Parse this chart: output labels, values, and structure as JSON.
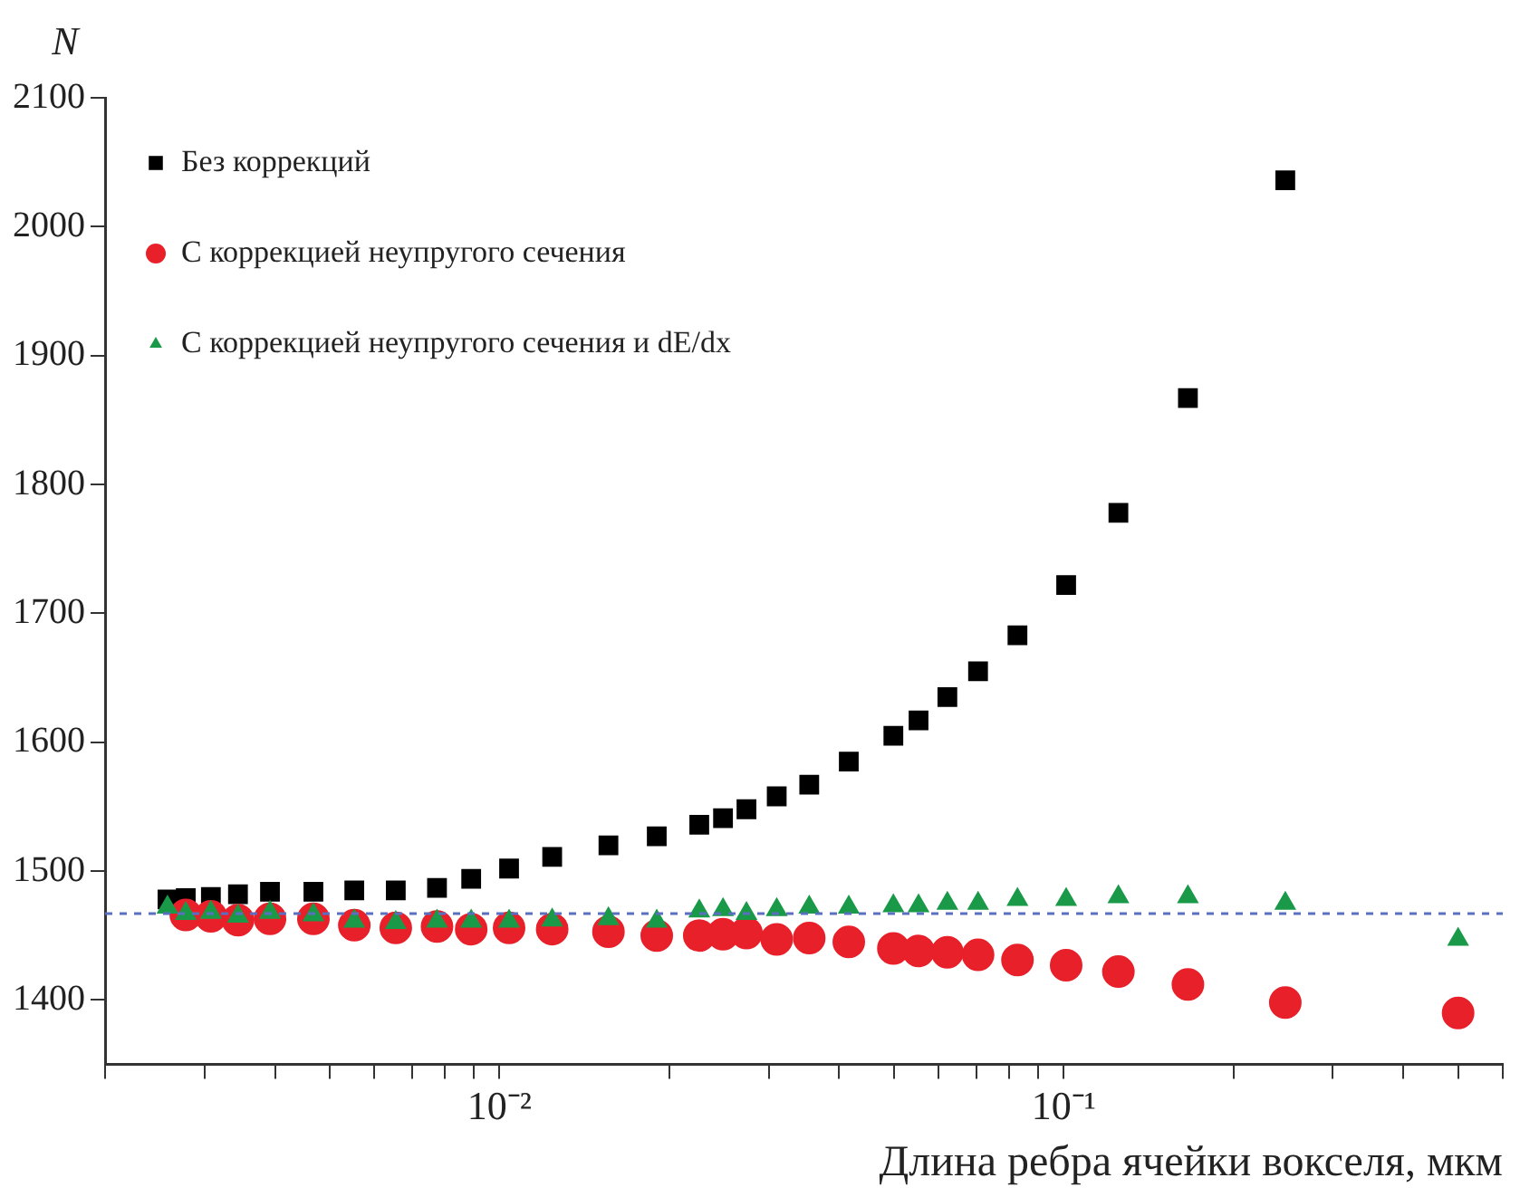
{
  "chart_data": {
    "type": "scatter",
    "xlabel": "Длина ребра ячейки вокселя, мкм",
    "ylabel": "N",
    "log": "x",
    "legend": "top left",
    "grid": false,
    "xlim": [
      0.002,
      0.6
    ],
    "ylim": [
      1350,
      2100
    ],
    "yticks": [
      1400,
      1500,
      1600,
      1700,
      1800,
      1900,
      2000,
      2100
    ],
    "xticks": [
      {
        "value": 0.002,
        "label": null
      },
      {
        "value": 0.003,
        "label": null
      },
      {
        "value": 0.004,
        "label": null
      },
      {
        "value": 0.005,
        "label": null
      },
      {
        "value": 0.006,
        "label": null
      },
      {
        "value": 0.007,
        "label": null
      },
      {
        "value": 0.008,
        "label": null
      },
      {
        "value": 0.009,
        "label": null
      },
      {
        "value": 0.01,
        "label": "10⁻²"
      },
      {
        "value": 0.02,
        "label": null
      },
      {
        "value": 0.03,
        "label": null
      },
      {
        "value": 0.04,
        "label": null
      },
      {
        "value": 0.05,
        "label": null
      },
      {
        "value": 0.06,
        "label": null
      },
      {
        "value": 0.07,
        "label": null
      },
      {
        "value": 0.08,
        "label": null
      },
      {
        "value": 0.09,
        "label": null
      },
      {
        "value": 0.1,
        "label": "10⁻¹"
      },
      {
        "value": 0.2,
        "label": null
      },
      {
        "value": 0.3,
        "label": null
      },
      {
        "value": 0.4,
        "label": null
      },
      {
        "value": 0.5,
        "label": null
      },
      {
        "value": 0.6,
        "label": null
      }
    ],
    "ref_lines": [
      {
        "axis": "y",
        "value": 1467,
        "label": null,
        "color": "#5b6fc0",
        "line_style": "dashed"
      }
    ],
    "series": [
      {
        "name": "Без коррекций",
        "color": "#000000",
        "marker": "square",
        "x": [
          0.00258,
          0.00278,
          0.00308,
          0.00344,
          0.00392,
          0.00468,
          0.00553,
          0.00655,
          0.00775,
          0.00891,
          0.0104,
          0.0124,
          0.0156,
          0.019,
          0.0226,
          0.0249,
          0.0274,
          0.031,
          0.0354,
          0.0416,
          0.0499,
          0.0553,
          0.0622,
          0.0705,
          0.0828,
          0.101,
          0.125,
          0.166,
          0.247
        ],
        "values": [
          1478,
          1479,
          1480,
          1482,
          1484,
          1484,
          1485,
          1485,
          1487,
          1494,
          1502,
          1511,
          1520,
          1527,
          1536,
          1541,
          1548,
          1558,
          1567,
          1585,
          1605,
          1617,
          1635,
          1655,
          1683,
          1722,
          1778,
          1867,
          2036
        ]
      },
      {
        "name": "С коррекцией неупругого сечения",
        "color": "#e8202a",
        "marker": "circle",
        "x": [
          0.00278,
          0.00308,
          0.00344,
          0.00392,
          0.00468,
          0.00553,
          0.00655,
          0.00775,
          0.00891,
          0.0104,
          0.0124,
          0.0156,
          0.019,
          0.0226,
          0.0249,
          0.0274,
          0.031,
          0.0354,
          0.0416,
          0.0499,
          0.0553,
          0.0622,
          0.0705,
          0.0828,
          0.101,
          0.125,
          0.166,
          0.247,
          0.5
        ],
        "values": [
          1466,
          1465,
          1462,
          1463,
          1463,
          1458,
          1456,
          1457,
          1455,
          1456,
          1455,
          1453,
          1450,
          1450,
          1451,
          1452,
          1447,
          1448,
          1445,
          1440,
          1438,
          1437,
          1435,
          1431,
          1427,
          1422,
          1412,
          1398,
          1390
        ]
      },
      {
        "name": "С коррекцией неупругого сечения и dE/dx",
        "color": "#1a9a48",
        "marker": "triangle",
        "x": [
          0.00258,
          0.00278,
          0.00308,
          0.00344,
          0.00392,
          0.00468,
          0.00553,
          0.00655,
          0.00775,
          0.00891,
          0.0104,
          0.0124,
          0.0156,
          0.019,
          0.0226,
          0.0249,
          0.0274,
          0.031,
          0.0354,
          0.0416,
          0.0499,
          0.0553,
          0.0622,
          0.0705,
          0.0828,
          0.101,
          0.125,
          0.166,
          0.247,
          0.5
        ],
        "values": [
          1472,
          1467,
          1468,
          1465,
          1468,
          1466,
          1461,
          1460,
          1461,
          1461,
          1461,
          1462,
          1463,
          1461,
          1469,
          1470,
          1467,
          1470,
          1472,
          1472,
          1473,
          1473,
          1475,
          1475,
          1478,
          1478,
          1480,
          1480,
          1475,
          1447
        ]
      }
    ]
  }
}
